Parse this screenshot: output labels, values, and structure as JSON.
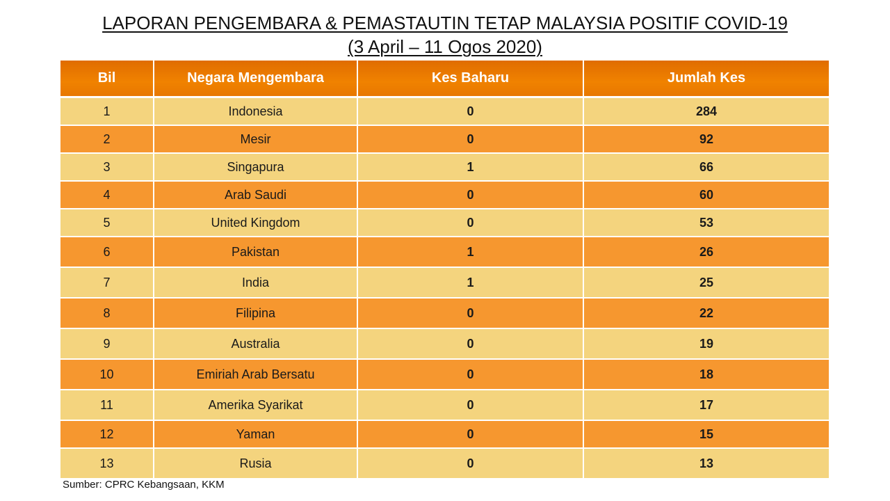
{
  "title": {
    "line1": "LAPORAN PENGEMBARA & PEMASTAUTIN TETAP MALAYSIA POSITIF COVID-19",
    "line2": "(3 April – 11 Ogos 2020)"
  },
  "table": {
    "headers": [
      "Bil",
      "Negara Mengembara",
      "Kes Baharu",
      "Jumlah Kes"
    ],
    "rows": [
      {
        "bil": "1",
        "negara": "Indonesia",
        "kes_baharu": "0",
        "jumlah_kes": "284"
      },
      {
        "bil": "2",
        "negara": "Mesir",
        "kes_baharu": "0",
        "jumlah_kes": "92"
      },
      {
        "bil": "3",
        "negara": "Singapura",
        "kes_baharu": "1",
        "jumlah_kes": "66"
      },
      {
        "bil": "4",
        "negara": "Arab Saudi",
        "kes_baharu": "0",
        "jumlah_kes": "60"
      },
      {
        "bil": "5",
        "negara": "United Kingdom",
        "kes_baharu": "0",
        "jumlah_kes": "53"
      },
      {
        "bil": "6",
        "negara": "Pakistan",
        "kes_baharu": "1",
        "jumlah_kes": "26"
      },
      {
        "bil": "7",
        "negara": "India",
        "kes_baharu": "1",
        "jumlah_kes": "25"
      },
      {
        "bil": "8",
        "negara": "Filipina",
        "kes_baharu": "0",
        "jumlah_kes": "22"
      },
      {
        "bil": "9",
        "negara": "Australia",
        "kes_baharu": "0",
        "jumlah_kes": "19"
      },
      {
        "bil": "10",
        "negara": "Emiriah Arab Bersatu",
        "kes_baharu": "0",
        "jumlah_kes": "18"
      },
      {
        "bil": "11",
        "negara": "Amerika Syarikat",
        "kes_baharu": "0",
        "jumlah_kes": "17"
      },
      {
        "bil": "12",
        "negara": "Yaman",
        "kes_baharu": "0",
        "jumlah_kes": "15"
      },
      {
        "bil": "13",
        "negara": "Rusia",
        "kes_baharu": "0",
        "jumlah_kes": "13"
      }
    ]
  },
  "colors": {
    "header_orange": "#f08200",
    "row_light": "#f4d47e",
    "row_dark": "#f6972f"
  },
  "source": "Sumber: CPRC Kebangsaan, KKM"
}
